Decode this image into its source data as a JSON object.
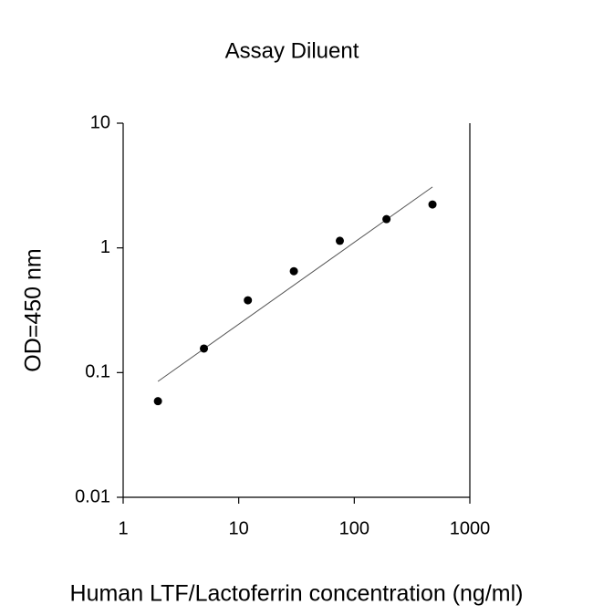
{
  "chart_data": {
    "type": "scatter",
    "title": "Assay Diluent",
    "x_label": "Human LTF/Lactoferrin concentration (ng/ml)",
    "y_label": "OD=450 nm",
    "log_x": true,
    "log_y": true,
    "xlim": [
      1,
      1000
    ],
    "ylim": [
      0.01,
      10
    ],
    "xticks": [
      1,
      10,
      100,
      1000
    ],
    "yticks": [
      0.01,
      0.1,
      1,
      10
    ],
    "series": [
      {
        "color": "#000000",
        "x": [
          2,
          5,
          12,
          30,
          75,
          190,
          475
        ],
        "values": [
          0.059,
          0.156,
          0.38,
          0.65,
          1.14,
          1.7,
          2.23
        ]
      }
    ],
    "fit_line": {
      "color": "#555555",
      "x": [
        2,
        475
      ],
      "values": [
        0.085,
        3.08
      ]
    }
  }
}
